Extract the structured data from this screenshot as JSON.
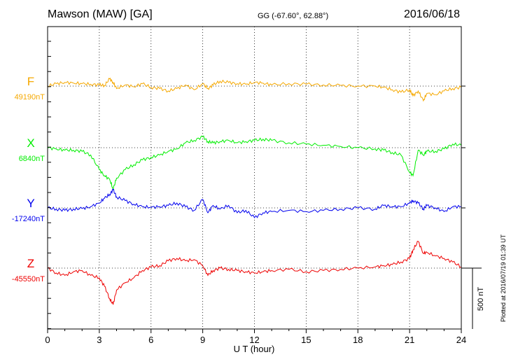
{
  "header": {
    "title": "Mawson (MAW)  [GA]",
    "coords": "GG (-67.60°,  62.88°)",
    "date": "2016/06/18"
  },
  "plotted_note": "Plotted at 2016/07/19 01:39 UT",
  "chart_data": {
    "type": "line",
    "xlabel": "U T (hour)",
    "xlim": [
      0,
      24
    ],
    "xticks": [
      0,
      3,
      6,
      9,
      12,
      15,
      18,
      21,
      24
    ],
    "x_grid": true,
    "scale_bar": {
      "label": "500 nT",
      "value_nT": 500
    },
    "series": [
      {
        "name": "F",
        "baseline_label": "49190nT",
        "baseline_nT": 49190,
        "color": "#f5a800",
        "x": [
          0,
          0.5,
          1,
          1.5,
          2,
          2.5,
          3,
          3.3,
          3.6,
          3.8,
          4,
          4.5,
          5,
          5.5,
          6,
          6.5,
          7,
          7.5,
          8,
          8.5,
          9,
          9.3,
          9.6,
          10,
          10.5,
          11,
          11.5,
          12,
          12.5,
          13,
          14,
          15,
          16,
          17,
          18,
          19,
          19.5,
          20,
          20.5,
          21,
          21.2,
          21.5,
          21.8,
          22,
          22.5,
          23,
          23.5,
          24
        ],
        "y": [
          0,
          20,
          30,
          25,
          20,
          15,
          10,
          5,
          60,
          30,
          -20,
          10,
          -5,
          20,
          -10,
          -20,
          -40,
          -20,
          10,
          -30,
          20,
          -20,
          10,
          40,
          30,
          20,
          15,
          30,
          25,
          10,
          20,
          15,
          10,
          5,
          0,
          0,
          -10,
          -30,
          -50,
          -30,
          -80,
          -40,
          -120,
          -60,
          -70,
          -40,
          -20,
          -10
        ]
      },
      {
        "name": "X",
        "baseline_label": "6840nT",
        "baseline_nT": 6840,
        "color": "#00ee00",
        "x": [
          0,
          0.5,
          1,
          1.5,
          2,
          2.5,
          3,
          3.3,
          3.6,
          3.8,
          4,
          4.5,
          5,
          5.5,
          6,
          6.5,
          7,
          7.5,
          8,
          8.5,
          9,
          9.3,
          9.6,
          10,
          10.5,
          11,
          11.5,
          12,
          12.5,
          13,
          14,
          15,
          16,
          17,
          18,
          19,
          19.5,
          20,
          20.5,
          21,
          21.2,
          21.5,
          21.8,
          22,
          22.5,
          23,
          23.5,
          24
        ],
        "y": [
          0,
          -10,
          -20,
          -20,
          -30,
          -60,
          -180,
          -230,
          -260,
          -340,
          -250,
          -180,
          -140,
          -100,
          -80,
          -60,
          -30,
          -10,
          40,
          60,
          90,
          50,
          40,
          50,
          60,
          40,
          50,
          60,
          70,
          60,
          40,
          30,
          20,
          10,
          0,
          -10,
          -20,
          -40,
          -60,
          -200,
          -230,
          -20,
          -60,
          -30,
          -30,
          -10,
          30,
          20
        ]
      },
      {
        "name": "Y",
        "baseline_label": "-17240nT",
        "baseline_nT": -17240,
        "color": "#0000ee",
        "x": [
          0,
          0.5,
          1,
          1.5,
          2,
          2.5,
          3,
          3.3,
          3.6,
          3.8,
          4,
          4.5,
          5,
          5.5,
          6,
          6.5,
          7,
          7.5,
          8,
          8.5,
          9,
          9.3,
          9.6,
          10,
          10.5,
          11,
          11.5,
          12,
          12.5,
          13,
          14,
          15,
          16,
          17,
          18,
          19,
          19.5,
          20,
          20.5,
          21,
          21.2,
          21.5,
          21.8,
          22,
          22.5,
          23,
          23.5,
          24
        ],
        "y": [
          0,
          -10,
          -20,
          -10,
          -5,
          10,
          40,
          80,
          110,
          150,
          90,
          60,
          30,
          10,
          5,
          10,
          20,
          40,
          10,
          -20,
          70,
          -40,
          20,
          -10,
          20,
          -40,
          -20,
          -80,
          -40,
          -30,
          -20,
          -30,
          -20,
          -10,
          0,
          -10,
          20,
          10,
          10,
          40,
          60,
          40,
          -10,
          20,
          0,
          -30,
          10,
          10
        ]
      },
      {
        "name": "Z",
        "baseline_label": "-45550nT",
        "baseline_nT": -45550,
        "color": "#ee0000",
        "x": [
          0,
          0.5,
          1,
          1.5,
          2,
          2.5,
          3,
          3.3,
          3.6,
          3.8,
          4,
          4.5,
          5,
          5.5,
          6,
          6.5,
          7,
          7.5,
          8,
          8.5,
          9,
          9.3,
          9.6,
          10,
          10.5,
          11,
          11.5,
          12,
          12.5,
          13,
          14,
          15,
          16,
          17,
          18,
          19,
          19.5,
          20,
          20.5,
          21,
          21.2,
          21.5,
          21.8,
          22,
          22.5,
          23,
          23.5,
          24
        ],
        "y": [
          0,
          -40,
          -60,
          -30,
          -20,
          -60,
          -80,
          -150,
          -250,
          -300,
          -180,
          -120,
          -80,
          -20,
          10,
          20,
          60,
          80,
          60,
          70,
          20,
          -60,
          -20,
          0,
          -10,
          -20,
          -30,
          -40,
          -30,
          -20,
          -10,
          -30,
          -20,
          -10,
          0,
          10,
          20,
          30,
          50,
          80,
          150,
          220,
          120,
          130,
          100,
          80,
          50,
          10
        ]
      }
    ]
  }
}
